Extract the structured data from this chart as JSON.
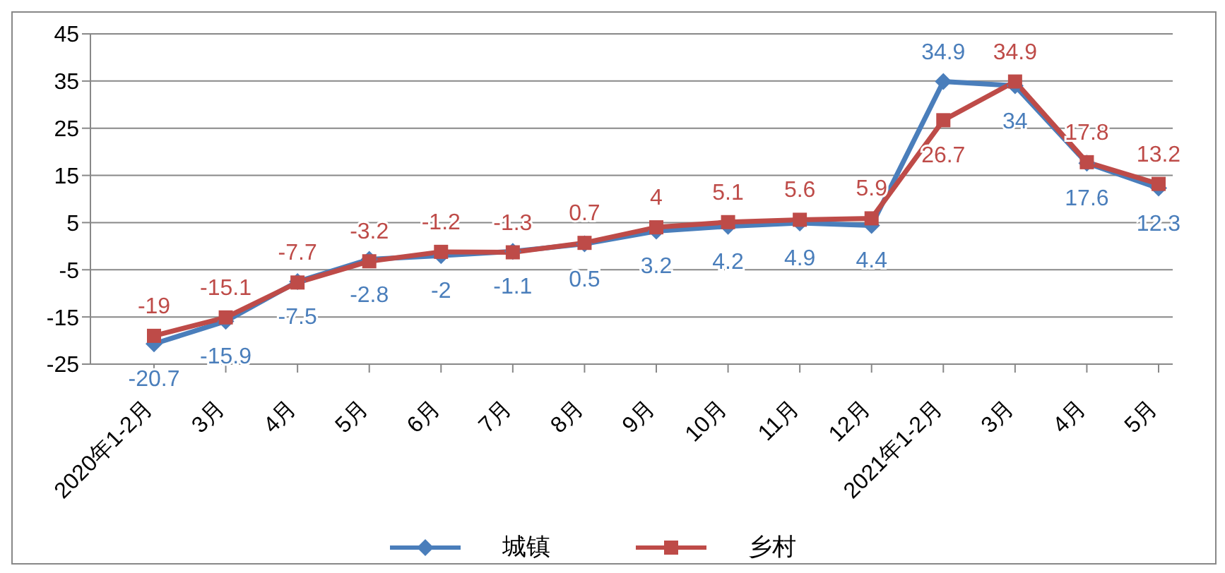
{
  "chart_data": {
    "type": "line",
    "categories": [
      "2020年1-2月",
      "3月",
      "4月",
      "5月",
      "6月",
      "7月",
      "8月",
      "9月",
      "10月",
      "11月",
      "12月",
      "2021年1-2月",
      "3月",
      "4月",
      "5月"
    ],
    "series": [
      {
        "name": "城镇",
        "color": "#4a7ebb",
        "marker": "diamond",
        "values": [
          -20.7,
          -15.9,
          -7.5,
          -2.8,
          -2,
          -1.1,
          0.5,
          3.2,
          4.2,
          4.9,
          4.4,
          34.9,
          34,
          17.6,
          12.3
        ]
      },
      {
        "name": "乡村",
        "color": "#be4b48",
        "marker": "square",
        "values": [
          -19,
          -15.1,
          -7.7,
          -3.2,
          -1.2,
          -1.3,
          0.7,
          4,
          5.1,
          5.6,
          5.9,
          26.7,
          34.9,
          17.8,
          13.2
        ]
      }
    ],
    "ylim": [
      -25,
      45
    ],
    "yticks": [
      -25,
      -15,
      -5,
      5,
      15,
      25,
      35,
      45
    ],
    "grid": "y",
    "legend": "bottom",
    "data_labels": true
  }
}
